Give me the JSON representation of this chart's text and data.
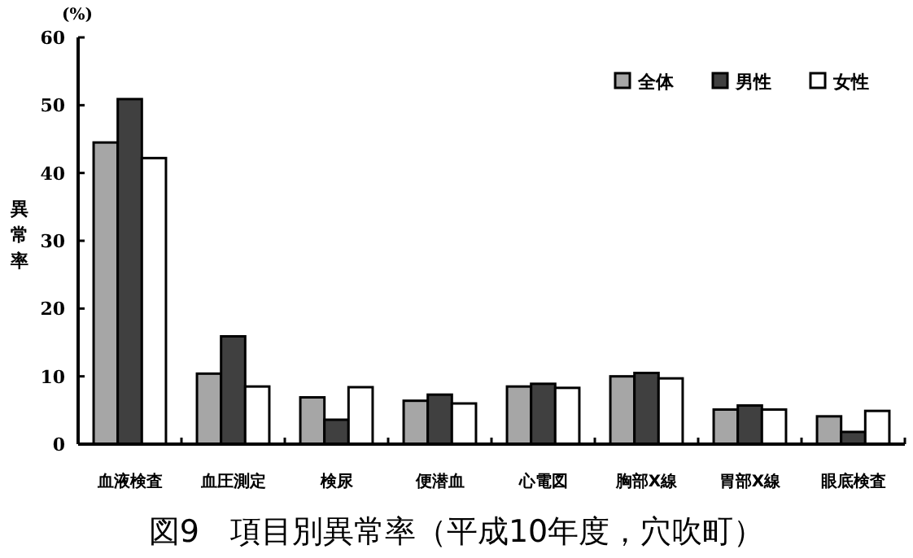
{
  "chart_data": {
    "type": "bar",
    "title": "図9　項目別異常率（平成10年度，穴吹町）",
    "ylabel": "異常率",
    "annotations": [
      "(%)"
    ],
    "categories": [
      "血液検査",
      "血圧測定",
      "検尿",
      "便潜血",
      "心電図",
      "胸部X線",
      "胃部X線",
      "眼底検査"
    ],
    "series": [
      {
        "name": "全体",
        "color": "#a6a6a6",
        "values": [
          44.5,
          10.4,
          6.9,
          6.4,
          8.5,
          10.0,
          5.1,
          4.1
        ]
      },
      {
        "name": "男性",
        "color": "#404040",
        "values": [
          50.9,
          15.9,
          3.6,
          7.3,
          8.9,
          10.5,
          5.7,
          1.8
        ]
      },
      {
        "name": "女性",
        "color": "#ffffff",
        "values": [
          42.2,
          8.5,
          8.4,
          6.0,
          8.3,
          9.7,
          5.1,
          4.9
        ]
      }
    ],
    "ylim": [
      0,
      60
    ],
    "yticks": [
      0,
      10,
      20,
      30,
      40,
      50,
      60
    ],
    "legend": "top right",
    "grid": false
  }
}
